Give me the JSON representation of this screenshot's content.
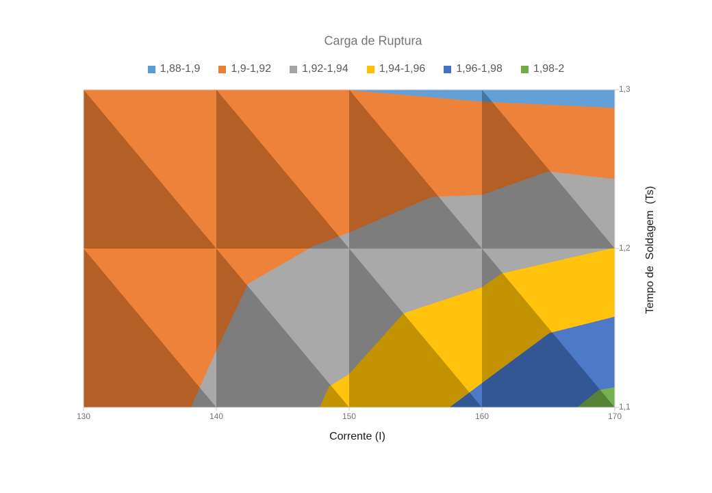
{
  "title": "Carga de Ruptura",
  "legend": {
    "items": [
      {
        "label": "1,88-1,9",
        "color": "#5B9BD5"
      },
      {
        "label": "1,9-1,92",
        "color": "#ED7D31"
      },
      {
        "label": "1,92-1,94",
        "color": "#A5A5A5"
      },
      {
        "label": "1,94-1,96",
        "color": "#FFC000"
      },
      {
        "label": "1,96-1,98",
        "color": "#4472C4"
      },
      {
        "label": "1,98-2",
        "color": "#70AD47"
      }
    ]
  },
  "x_axis": {
    "title": "Corrente (I)",
    "ticks": [
      {
        "label": "130",
        "value": 130
      },
      {
        "label": "140",
        "value": 140
      },
      {
        "label": "150",
        "value": 150
      },
      {
        "label": "160",
        "value": 160
      },
      {
        "label": "170",
        "value": 170
      }
    ]
  },
  "y_axis": {
    "title": "Tempo de  Soldagem  (Ts)",
    "ticks": [
      {
        "label": "1,3",
        "value": 1.3
      },
      {
        "label": "1,2",
        "value": 1.2
      },
      {
        "label": "1,1",
        "value": 1.1
      }
    ]
  },
  "chart_data": {
    "type": "contour",
    "title": "Carga de Ruptura",
    "xlabel": "Corrente (I)",
    "ylabel": "Tempo de Soldagem (Ts)",
    "x": [
      130,
      140,
      150,
      160,
      170
    ],
    "y": [
      1.1,
      1.2,
      1.3
    ],
    "xlim": [
      130,
      170
    ],
    "ylim": [
      1.1,
      1.3
    ],
    "legend_position": "top",
    "grid": false,
    "bands": [
      {
        "range": "1,88-1,9",
        "color": "#5B9BD5"
      },
      {
        "range": "1,9-1,92",
        "color": "#ED7D31"
      },
      {
        "range": "1,92-1,94",
        "color": "#A5A5A5"
      },
      {
        "range": "1,94-1,96",
        "color": "#FFC000"
      },
      {
        "range": "1,96-1,98",
        "color": "#4472C4"
      },
      {
        "range": "1,98-2",
        "color": "#70AD47"
      }
    ],
    "z_grid_estimated": {
      "rows_ts": [
        1.3,
        1.2,
        1.1
      ],
      "cols_corrente": [
        130,
        140,
        150,
        160,
        170
      ],
      "values": [
        [
          1.91,
          1.91,
          1.9,
          1.893,
          1.887
        ],
        [
          1.91,
          1.912,
          1.921,
          1.932,
          1.941
        ],
        [
          1.906,
          1.924,
          1.946,
          1.966,
          1.985
        ]
      ]
    },
    "regions": [
      {
        "band": "1,9-1,92",
        "color": "#ED7D31",
        "points": [
          [
            130,
            1.3
          ],
          [
            149.9,
            1.3
          ],
          [
            160,
            1.2927
          ],
          [
            170,
            1.2888
          ],
          [
            170,
            1.2435
          ],
          [
            165,
            1.2483
          ],
          [
            160,
            1.2336
          ],
          [
            156.2,
            1.2323
          ],
          [
            150,
            1.2099
          ],
          [
            147.3,
            1.2013
          ],
          [
            142.4,
            1.1776
          ],
          [
            140,
            1.1353
          ],
          [
            138.1,
            1.1
          ],
          [
            130,
            1.1
          ]
        ]
      },
      {
        "band": "1,88-1,9",
        "color": "#5B9BD5",
        "points": [
          [
            149.9,
            1.3
          ],
          [
            170,
            1.3
          ],
          [
            170,
            1.2888
          ],
          [
            160,
            1.2927
          ]
        ]
      },
      {
        "band": "1,92-1,94",
        "color": "#A5A5A5",
        "points": [
          [
            138.1,
            1.1
          ],
          [
            140,
            1.1353
          ],
          [
            142.4,
            1.1776
          ],
          [
            147.3,
            1.2013
          ],
          [
            150,
            1.2099
          ],
          [
            156.2,
            1.2323
          ],
          [
            160,
            1.2336
          ],
          [
            165,
            1.2483
          ],
          [
            170,
            1.2435
          ],
          [
            170,
            1.2004
          ],
          [
            161.5,
            1.1841
          ],
          [
            160,
            1.1754
          ],
          [
            154.1,
            1.159
          ],
          [
            150,
            1.1207
          ],
          [
            148.5,
            1.113
          ],
          [
            147.8,
            1.1
          ]
        ]
      },
      {
        "band": "1,94-1,96",
        "color": "#FFC000",
        "points": [
          [
            147.8,
            1.1
          ],
          [
            148.5,
            1.113
          ],
          [
            150,
            1.1207
          ],
          [
            154.1,
            1.159
          ],
          [
            160,
            1.1754
          ],
          [
            161.5,
            1.1841
          ],
          [
            170,
            1.2004
          ],
          [
            170,
            1.1569
          ],
          [
            165.1,
            1.1466
          ],
          [
            160,
            1.1151
          ],
          [
            157.6,
            1.1
          ]
        ]
      },
      {
        "band": "1,96-1,98",
        "color": "#4472C4",
        "points": [
          [
            157.6,
            1.1
          ],
          [
            160,
            1.1151
          ],
          [
            165.1,
            1.1466
          ],
          [
            170,
            1.1569
          ],
          [
            170,
            1.1125
          ],
          [
            168.8,
            1.1108
          ],
          [
            167.2,
            1.1
          ]
        ]
      },
      {
        "band": "1,98-2",
        "color": "#70AD47",
        "points": [
          [
            167.2,
            1.1
          ],
          [
            168.8,
            1.1108
          ],
          [
            170,
            1.1125
          ],
          [
            170,
            1.1
          ]
        ]
      }
    ]
  }
}
